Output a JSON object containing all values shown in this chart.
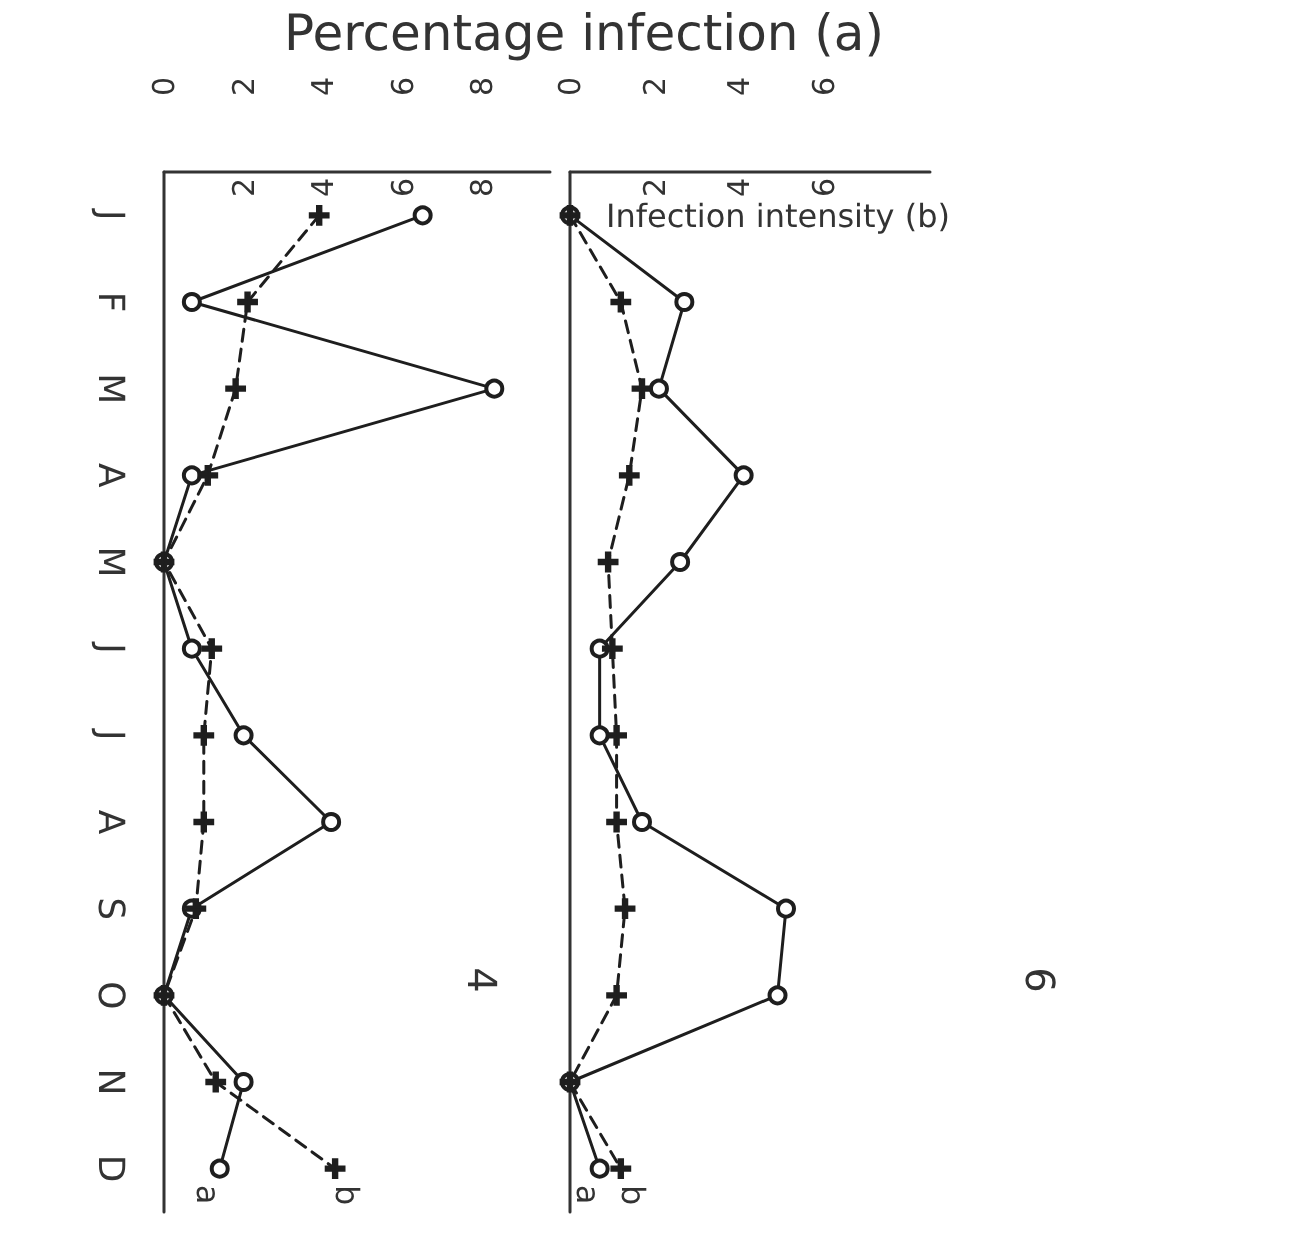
{
  "chart_data": [
    {
      "type": "line",
      "annotations": [
        "4"
      ],
      "xlabel": "Percentage infection (a)",
      "orientation": "horizontal",
      "categories": [
        "J",
        "F",
        "M",
        "A",
        "M",
        "J",
        "J",
        "A",
        "S",
        "O",
        "N",
        "D"
      ],
      "series": [
        {
          "name": "a",
          "color": "#1e1e1e",
          "marker": "circle",
          "line_style": "solid",
          "values": [
            6.5,
            0.7,
            8.3,
            0.7,
            0,
            0.7,
            2,
            4.2,
            0.7,
            0,
            2,
            1.4
          ]
        },
        {
          "name": "b",
          "color": "#1e1e1e",
          "marker": "cross",
          "line_style": "dashed",
          "values": [
            3.9,
            2.1,
            1.8,
            1.1,
            0,
            1.2,
            1,
            1,
            0.8,
            0,
            1.3,
            4.3
          ]
        }
      ],
      "xlim": [
        0,
        9.7
      ],
      "xticks": [
        0,
        2,
        4,
        6,
        8
      ],
      "x2lim": [
        0,
        9.7
      ],
      "x2ticks": [
        2,
        4,
        6,
        8
      ]
    },
    {
      "type": "line",
      "annotations": [
        "6"
      ],
      "x2label": "Infection intensity (b)",
      "orientation": "horizontal",
      "categories": [
        null,
        null,
        null,
        null,
        null,
        null,
        null,
        null,
        null,
        null,
        null,
        null
      ],
      "series": [
        {
          "name": "a",
          "color": "#1e1e1e",
          "marker": "circle",
          "line_style": "solid",
          "values": [
            0,
            2.7,
            2.1,
            4.1,
            2.6,
            0.7,
            0.7,
            1.7,
            5.1,
            4.9,
            0,
            0.7
          ]
        },
        {
          "name": "b",
          "color": "#1e1e1e",
          "marker": "cross",
          "line_style": "dashed",
          "values": [
            0,
            1.2,
            1.7,
            1.4,
            0.9,
            1,
            1.1,
            1.1,
            1.3,
            1.1,
            0,
            1.2
          ]
        }
      ],
      "xlim": [
        0,
        8.5
      ],
      "xticks": [
        0,
        2,
        4,
        6
      ],
      "x2lim": [
        0,
        8.5
      ],
      "x2ticks": [
        2,
        4,
        6
      ]
    }
  ]
}
